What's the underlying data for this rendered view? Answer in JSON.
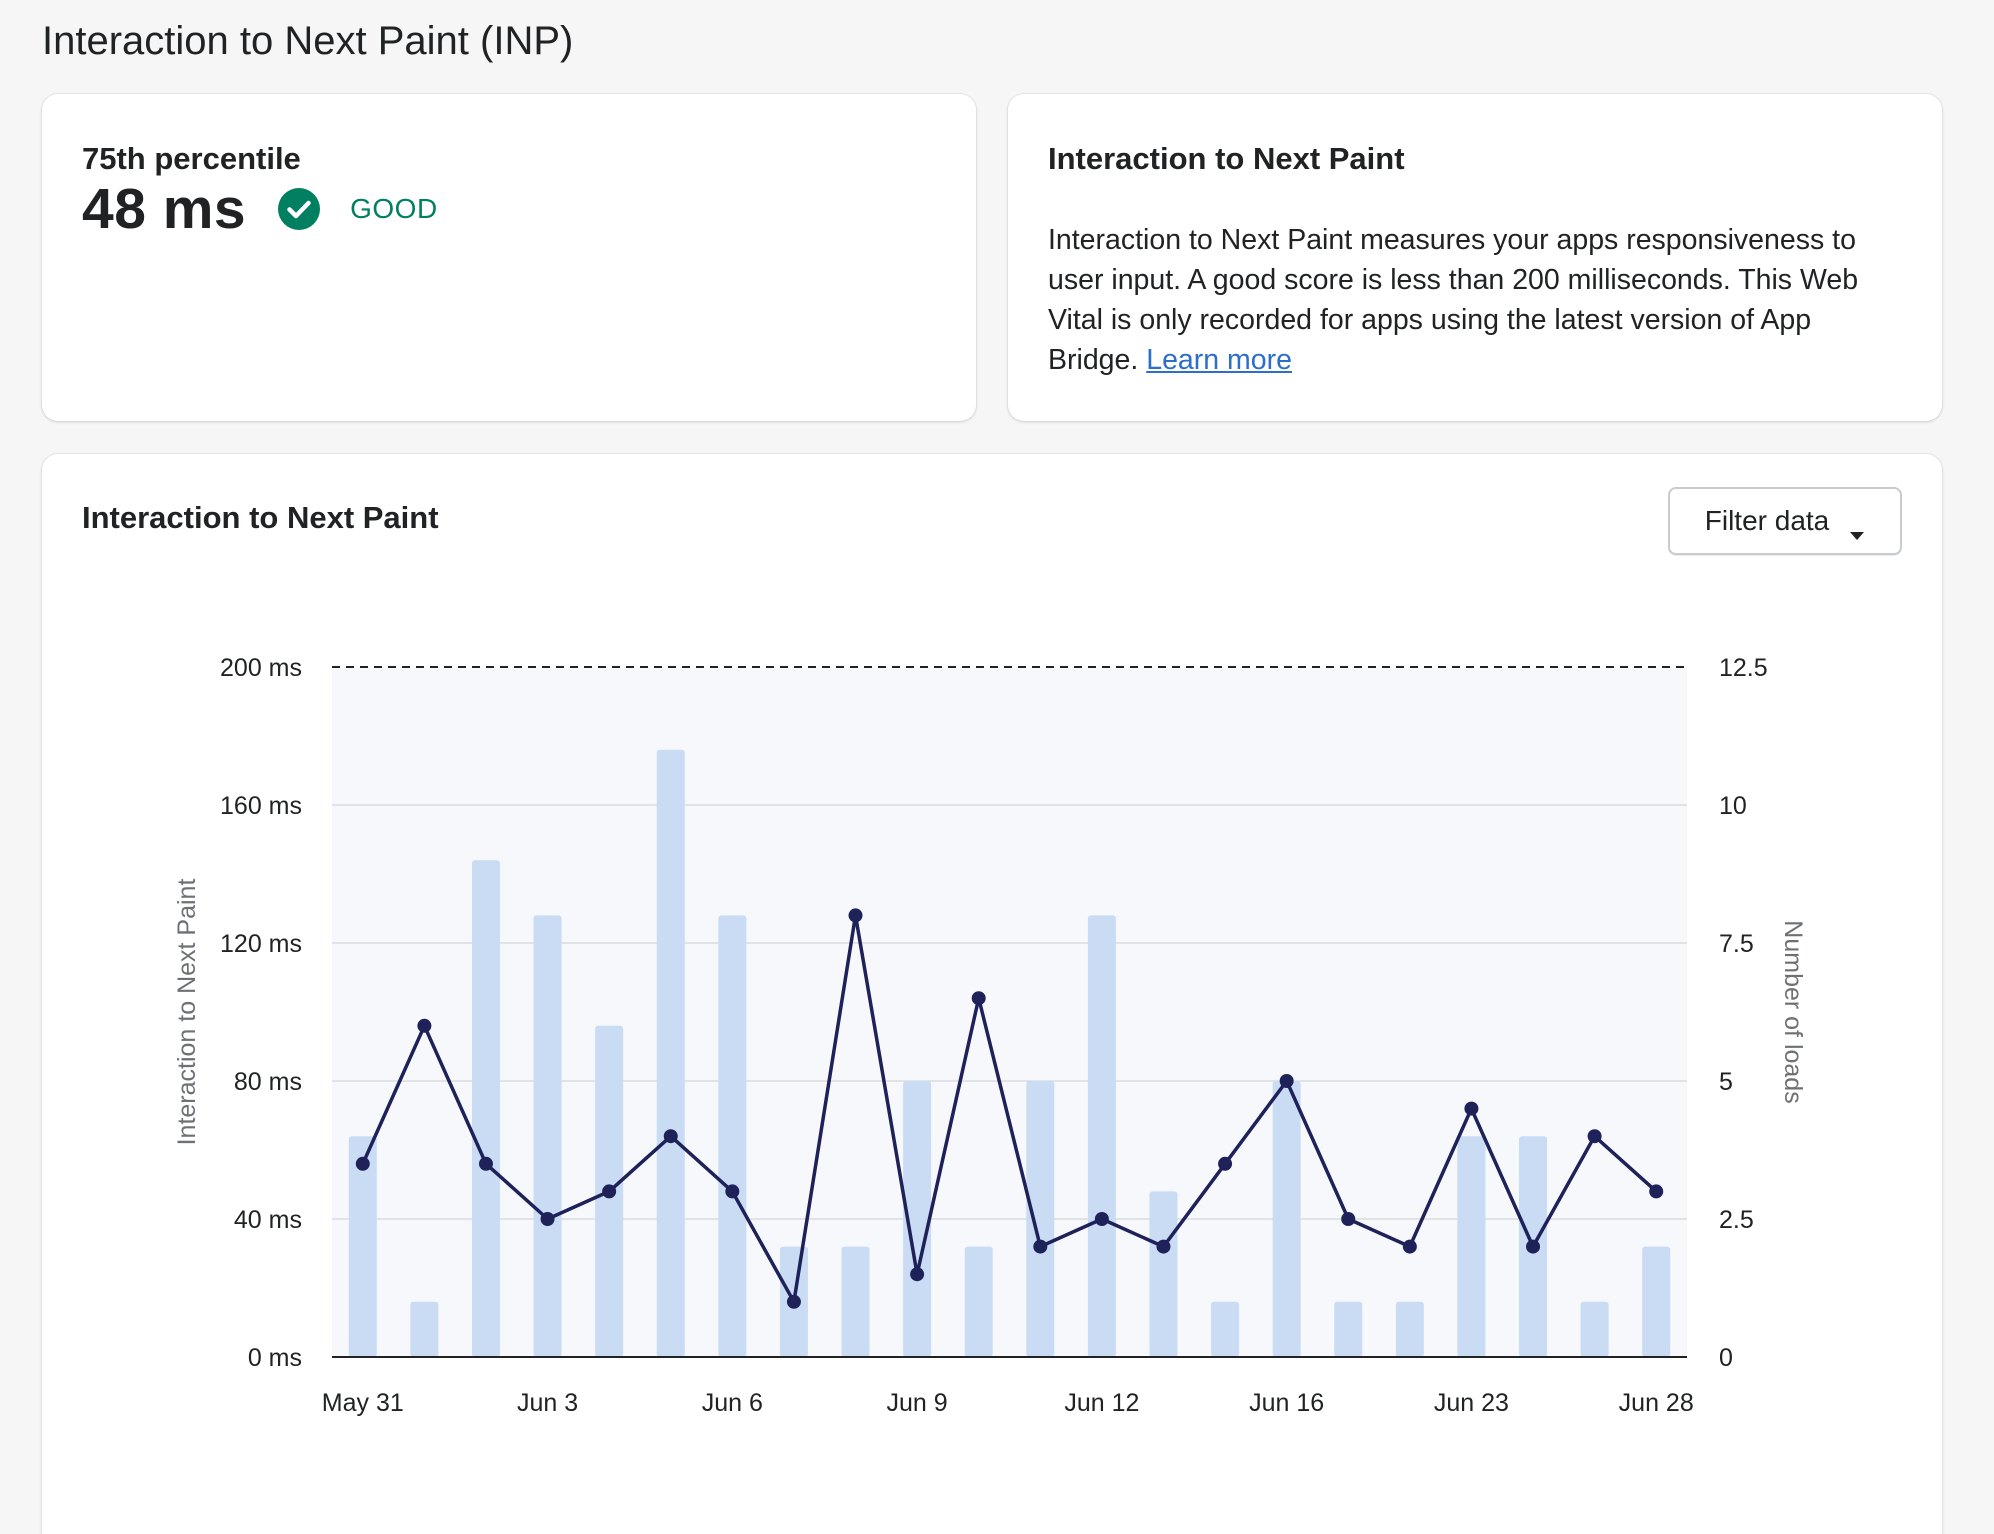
{
  "page": {
    "title": "Interaction to Next Paint (INP)"
  },
  "percentile_card": {
    "heading": "75th percentile",
    "value": "48 ms",
    "status_label": "GOOD",
    "status_icon": "check-circle-icon",
    "status_color": "#008060"
  },
  "info_card": {
    "heading": "Interaction to Next Paint",
    "body": "Interaction to Next Paint measures your apps responsiveness to user input. A good score is less than 200 milliseconds. This Web Vital is only recorded for apps using the latest version of App Bridge.",
    "link_text": "Learn more",
    "link_color": "#2c6ecb"
  },
  "chart_card": {
    "heading": "Interaction to Next Paint",
    "filter_button": {
      "label": "Filter data",
      "icon": "caret-down-icon"
    }
  },
  "chart_data": {
    "type": "bar+line",
    "title": "Interaction to Next Paint",
    "ylabel": "Interaction to Next Paint",
    "y2label": "Number of loads",
    "ylim": [
      0,
      200
    ],
    "y2lim": [
      0,
      12.5
    ],
    "yticks": [
      "0 ms",
      "40 ms",
      "80 ms",
      "120 ms",
      "160 ms",
      "200 ms"
    ],
    "y2ticks": [
      "0",
      "2.5",
      "5",
      "7.5",
      "10",
      "12.5"
    ],
    "xtick_labels": [
      "May 31",
      "Jun 3",
      "Jun 6",
      "Jun 9",
      "Jun 12",
      "Jun 16",
      "Jun 23",
      "Jun 28"
    ],
    "xtick_indices": [
      0,
      3,
      6,
      9,
      12,
      15,
      18,
      21
    ],
    "threshold": {
      "value": 200,
      "style": "dashed"
    },
    "grid": true,
    "bar_color": "#c9dcf4",
    "line_color": "#1f2159",
    "plot_bg": "#f6f8fc",
    "series": [
      {
        "type": "bar",
        "axis": "right",
        "values": [
          4,
          1,
          9,
          8,
          6,
          11,
          8,
          2,
          2,
          5,
          2,
          5,
          8,
          3,
          1,
          5,
          1,
          1,
          4,
          4,
          1,
          2
        ]
      },
      {
        "type": "line",
        "axis": "left",
        "values": [
          56,
          96,
          56,
          40,
          48,
          64,
          48,
          16,
          128,
          24,
          104,
          32,
          40,
          32,
          56,
          80,
          40,
          32,
          72,
          32,
          64,
          48
        ]
      }
    ]
  }
}
